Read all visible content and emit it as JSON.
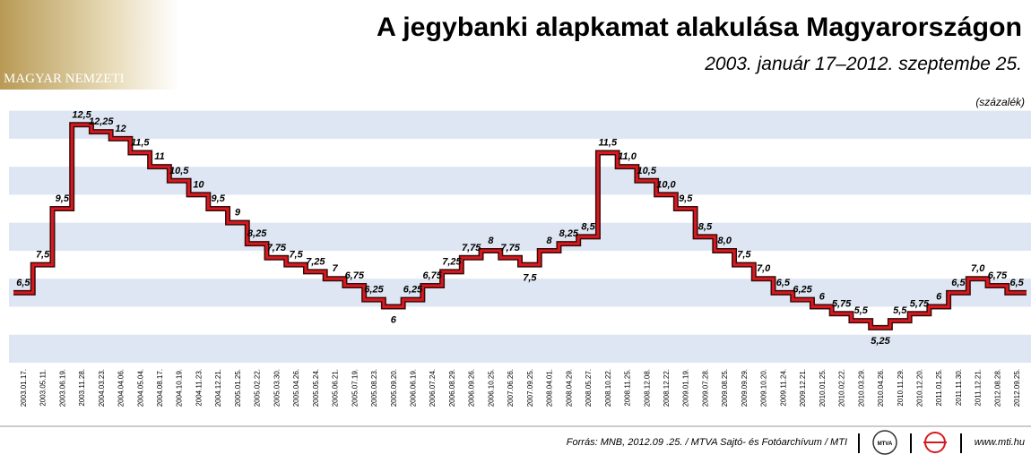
{
  "chart_data": {
    "type": "step",
    "title": "A jegybanki alapkamat alakulása Magyarországon",
    "subtitle": "2003. január 17–2012. szeptembe 25.",
    "unit_label": "(százalék)",
    "source": "Forrás: MNB, 2012.09 .25. / MTVA Sajtó- és Fotóarchívum / MTI",
    "website": "www.mti.hu",
    "logo_text": "MAGYAR NEMZETI",
    "badge_text": "MTVA",
    "color": "#d71920",
    "ylim": [
      4,
      13.5
    ],
    "categories": [
      "2003.01.17.",
      "2003.05.11.",
      "2003.06.19.",
      "2003.11.28.",
      "2004.03.23.",
      "2004.04.06.",
      "2004.05.04.",
      "2004.08.17.",
      "2004.10.19.",
      "2004.11.23.",
      "2004.12.21.",
      "2005.01.25.",
      "2005.02.22.",
      "2005.03.30.",
      "2005.04.26.",
      "2005.05.24.",
      "2005.06.21.",
      "2005.07.19.",
      "2005.08.23.",
      "2005.09.20.",
      "2006.06.19.",
      "2006.07.24.",
      "2006.08.29.",
      "2006.09.26.",
      "2006.10.25.",
      "2007.06.26.",
      "2007.09.25.",
      "2008.04.01.",
      "2008.04.29.",
      "2008.05.27.",
      "2008.10.22.",
      "2008.11.25.",
      "2008.12.08.",
      "2008.12.22.",
      "2009.01.19.",
      "2009.07.28.",
      "2009.08.25.",
      "2009.09.29.",
      "2009.10.20.",
      "2009.11.24.",
      "2009.12.21.",
      "2010.01.25.",
      "2010.02.22.",
      "2010.03.29.",
      "2010.04.26.",
      "2010.11.29.",
      "2010.12.20.",
      "2011.01.25.",
      "2011.11.30.",
      "2011.12.21.",
      "2012.08.28.",
      "2012.09.25."
    ],
    "values": [
      6.5,
      7.5,
      9.5,
      12.5,
      12.25,
      12,
      11.5,
      11,
      10.5,
      10,
      9.5,
      9,
      8.25,
      7.75,
      7.5,
      7.25,
      7,
      6.75,
      6.25,
      6,
      6.25,
      6.75,
      7.25,
      7.75,
      8,
      7.75,
      7.5,
      8,
      8.25,
      8.5,
      11.5,
      11,
      10.5,
      10,
      9.5,
      8.5,
      8,
      7.5,
      7,
      6.5,
      6.25,
      6,
      5.75,
      5.5,
      5.25,
      5.5,
      5.75,
      6,
      6.5,
      7,
      6.75,
      6.5
    ],
    "value_labels": [
      "6,5",
      "7,5",
      "9,5",
      "12,5",
      "12,25",
      "12",
      "11,5",
      "11",
      "10,5",
      "10",
      "9,5",
      "9",
      "8,25",
      "7,75",
      "7,5",
      "7,25",
      "7",
      "6,75",
      "6,25",
      "6",
      "6,25",
      "6,75",
      "7,25",
      "7,75",
      "8",
      "7,75",
      "7,5",
      "8",
      "8,25",
      "8,5",
      "11,5",
      "11,0",
      "10,5",
      "10,0",
      "9,5",
      "8,5",
      "8,0",
      "7,5",
      "7,0",
      "6,5",
      "6,25",
      "6",
      "5,75",
      "5,5",
      "5,25",
      "5,5",
      "5,75",
      "6",
      "6,5",
      "7,0",
      "6,75",
      "6,5"
    ]
  }
}
